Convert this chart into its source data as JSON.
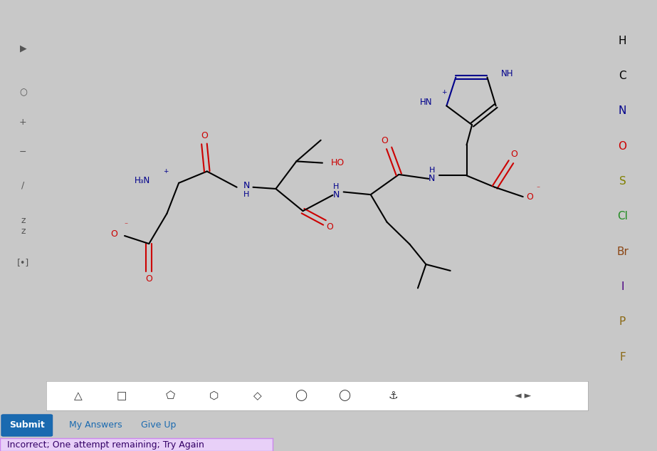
{
  "black": "#000000",
  "red": "#cc0000",
  "blue": "#00008B",
  "white": "#ffffff",
  "toolbar_bg": "#e8e8e8",
  "outer_bg": "#c8c8c8",
  "sidebar_labels": [
    "H",
    "C",
    "N",
    "O",
    "S",
    "Cl",
    "Br",
    "I",
    "P",
    "F"
  ],
  "sidebar_colors": [
    "#000000",
    "#000000",
    "#00008B",
    "#cc0000",
    "#808000",
    "#228B22",
    "#8B4513",
    "#4B0082",
    "#8B6914",
    "#8B6914"
  ],
  "submit_text": "Submit",
  "submit_color": "#1a6ab0",
  "link1": "My Answers",
  "link2": "Give Up",
  "status_text": "Incorrect; One attempt remaining; Try Again",
  "status_bg": "#e8d0f8",
  "status_border": "#cc88ee"
}
